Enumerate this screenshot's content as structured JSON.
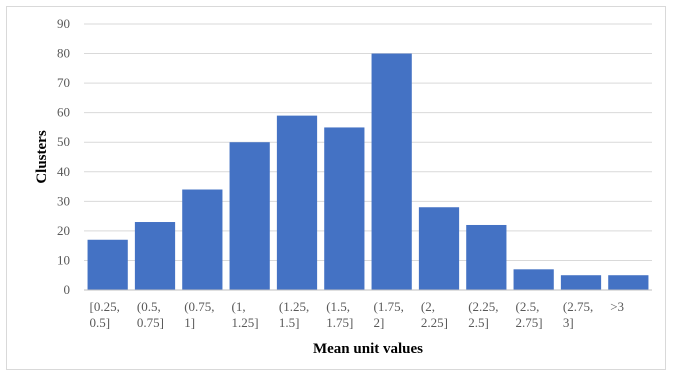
{
  "chart_data": {
    "type": "bar",
    "title": "",
    "xlabel": "Mean unit values",
    "ylabel": "Clusters",
    "categories": [
      [
        "[0.25,",
        "0.5]"
      ],
      [
        "(0.5,",
        "0.75]"
      ],
      [
        "(0.75,",
        "1]"
      ],
      [
        "(1,",
        "1.25]"
      ],
      [
        "(1.25,",
        "1.5]"
      ],
      [
        "(1.5,",
        "1.75]"
      ],
      [
        "(1.75,",
        "2]"
      ],
      [
        "(2,",
        "2.25]"
      ],
      [
        "(2.25,",
        "2.5]"
      ],
      [
        "(2.5,",
        "2.75]"
      ],
      [
        "(2.75,",
        "3]"
      ],
      [
        ">3"
      ]
    ],
    "values": [
      17,
      23,
      34,
      50,
      59,
      55,
      80,
      28,
      22,
      7,
      5,
      5
    ],
    "ylim": [
      0,
      90
    ],
    "yticks": [
      0,
      10,
      20,
      30,
      40,
      50,
      60,
      70,
      80,
      90
    ],
    "grid": true,
    "legend": "none",
    "colors": {
      "bar": "#4472c4",
      "grid": "#d9d9d9",
      "axis": "#bfbfbf"
    }
  }
}
